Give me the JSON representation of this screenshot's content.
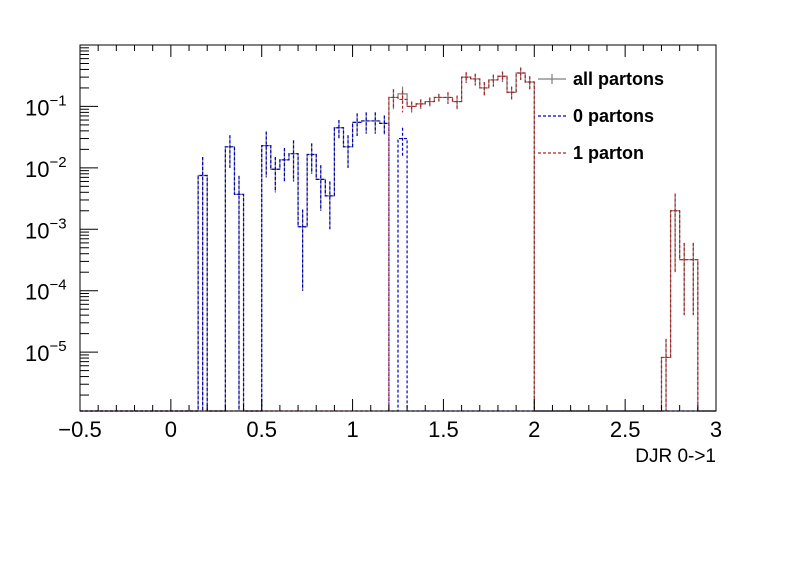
{
  "chart_data": {
    "type": "histogram",
    "title": "",
    "xlabel": "DJR 0->1",
    "ylabel": "",
    "xlim": [
      -0.5,
      3.0
    ],
    "ylim": [
      1.1e-06,
      1.0
    ],
    "y_scale": "log",
    "grid": false,
    "legend_position": "top-right",
    "x_ticks": [
      {
        "value": -0.5,
        "label": "−0.5"
      },
      {
        "value": 0.0,
        "label": "0"
      },
      {
        "value": 0.5,
        "label": "0.5"
      },
      {
        "value": 1.0,
        "label": "1"
      },
      {
        "value": 1.5,
        "label": "1.5"
      },
      {
        "value": 2.0,
        "label": "2"
      },
      {
        "value": 2.5,
        "label": "2.5"
      },
      {
        "value": 3.0,
        "label": "3"
      }
    ],
    "y_ticks": [
      {
        "value": 0.1,
        "base": "10",
        "exp": "−1"
      },
      {
        "value": 0.01,
        "base": "10",
        "exp": "−2"
      },
      {
        "value": 0.001,
        "base": "10",
        "exp": "−3"
      },
      {
        "value": 0.0001,
        "base": "10",
        "exp": "−4"
      },
      {
        "value": 1e-05,
        "base": "10",
        "exp": "−5"
      }
    ],
    "bin_width": 0.05,
    "series": [
      {
        "name": "all partons",
        "color": "#7f7f7f",
        "dash": "solid",
        "bins": [
          {
            "x0": 0.15,
            "y": 0.0075,
            "err": 0.0075
          },
          {
            "x0": 0.3,
            "y": 0.022,
            "err": 0.012
          },
          {
            "x0": 0.35,
            "y": 0.0037,
            "err": 0.0037
          },
          {
            "x0": 0.5,
            "y": 0.023,
            "err": 0.016
          },
          {
            "x0": 0.55,
            "y": 0.0095,
            "err": 0.0055
          },
          {
            "x0": 0.6,
            "y": 0.0135,
            "err": 0.0075
          },
          {
            "x0": 0.65,
            "y": 0.017,
            "err": 0.011
          },
          {
            "x0": 0.7,
            "y": 0.0011,
            "err": 0.001
          },
          {
            "x0": 0.75,
            "y": 0.0165,
            "err": 0.0085
          },
          {
            "x0": 0.8,
            "y": 0.0065,
            "err": 0.0045
          },
          {
            "x0": 0.85,
            "y": 0.0035,
            "err": 0.0025
          },
          {
            "x0": 0.9,
            "y": 0.045,
            "err": 0.015
          },
          {
            "x0": 0.95,
            "y": 0.022,
            "err": 0.012
          },
          {
            "x0": 1.0,
            "y": 0.055,
            "err": 0.022
          },
          {
            "x0": 1.05,
            "y": 0.058,
            "err": 0.022
          },
          {
            "x0": 1.1,
            "y": 0.058,
            "err": 0.022
          },
          {
            "x0": 1.15,
            "y": 0.053,
            "err": 0.018
          },
          {
            "x0": 1.2,
            "y": 0.14,
            "err": 0.05
          },
          {
            "x0": 1.25,
            "y": 0.16,
            "err": 0.05
          },
          {
            "x0": 1.3,
            "y": 0.1,
            "err": 0.02
          },
          {
            "x0": 1.35,
            "y": 0.11,
            "err": 0.02
          },
          {
            "x0": 1.4,
            "y": 0.12,
            "err": 0.02
          },
          {
            "x0": 1.45,
            "y": 0.14,
            "err": 0.02
          },
          {
            "x0": 1.5,
            "y": 0.14,
            "err": 0.03
          },
          {
            "x0": 1.55,
            "y": 0.12,
            "err": 0.03
          },
          {
            "x0": 1.6,
            "y": 0.3,
            "err": 0.06
          },
          {
            "x0": 1.65,
            "y": 0.28,
            "err": 0.06
          },
          {
            "x0": 1.7,
            "y": 0.2,
            "err": 0.05
          },
          {
            "x0": 1.75,
            "y": 0.27,
            "err": 0.06
          },
          {
            "x0": 1.8,
            "y": 0.31,
            "err": 0.06
          },
          {
            "x0": 1.85,
            "y": 0.17,
            "err": 0.04
          },
          {
            "x0": 1.9,
            "y": 0.35,
            "err": 0.08
          },
          {
            "x0": 1.95,
            "y": 0.25,
            "err": 0.06
          },
          {
            "x0": 2.7,
            "y": 8.2e-06,
            "err": 8.2e-06
          },
          {
            "x0": 2.75,
            "y": 0.002,
            "err": 0.0018
          },
          {
            "x0": 2.8,
            "y": 0.00032,
            "err": 0.00028
          },
          {
            "x0": 2.85,
            "y": 0.00032,
            "err": 0.00028
          }
        ]
      },
      {
        "name": "0 partons",
        "color": "#0000cc",
        "dash": "dashed",
        "bins": [
          {
            "x0": 0.15,
            "y": 0.0075,
            "err": 0.0075
          },
          {
            "x0": 0.3,
            "y": 0.022,
            "err": 0.012
          },
          {
            "x0": 0.35,
            "y": 0.0037,
            "err": 0.0037
          },
          {
            "x0": 0.5,
            "y": 0.023,
            "err": 0.016
          },
          {
            "x0": 0.55,
            "y": 0.0095,
            "err": 0.0055
          },
          {
            "x0": 0.6,
            "y": 0.0135,
            "err": 0.0075
          },
          {
            "x0": 0.65,
            "y": 0.017,
            "err": 0.011
          },
          {
            "x0": 0.7,
            "y": 0.0011,
            "err": 0.001
          },
          {
            "x0": 0.75,
            "y": 0.0165,
            "err": 0.0085
          },
          {
            "x0": 0.8,
            "y": 0.0065,
            "err": 0.0045
          },
          {
            "x0": 0.85,
            "y": 0.0035,
            "err": 0.0025
          },
          {
            "x0": 0.9,
            "y": 0.045,
            "err": 0.015
          },
          {
            "x0": 0.95,
            "y": 0.022,
            "err": 0.012
          },
          {
            "x0": 1.0,
            "y": 0.055,
            "err": 0.022
          },
          {
            "x0": 1.05,
            "y": 0.058,
            "err": 0.022
          },
          {
            "x0": 1.1,
            "y": 0.058,
            "err": 0.022
          },
          {
            "x0": 1.15,
            "y": 0.053,
            "err": 0.018
          },
          {
            "x0": 1.25,
            "y": 0.03,
            "err": 0.015
          }
        ]
      },
      {
        "name": "1 parton",
        "color": "#b22222",
        "dash": "dashed",
        "bins": [
          {
            "x0": 1.2,
            "y": 0.14,
            "err": 0.05
          },
          {
            "x0": 1.25,
            "y": 0.13,
            "err": 0.05
          },
          {
            "x0": 1.3,
            "y": 0.1,
            "err": 0.02
          },
          {
            "x0": 1.35,
            "y": 0.11,
            "err": 0.02
          },
          {
            "x0": 1.4,
            "y": 0.12,
            "err": 0.02
          },
          {
            "x0": 1.45,
            "y": 0.14,
            "err": 0.02
          },
          {
            "x0": 1.5,
            "y": 0.14,
            "err": 0.03
          },
          {
            "x0": 1.55,
            "y": 0.12,
            "err": 0.03
          },
          {
            "x0": 1.6,
            "y": 0.3,
            "err": 0.06
          },
          {
            "x0": 1.65,
            "y": 0.28,
            "err": 0.06
          },
          {
            "x0": 1.7,
            "y": 0.2,
            "err": 0.05
          },
          {
            "x0": 1.75,
            "y": 0.27,
            "err": 0.06
          },
          {
            "x0": 1.8,
            "y": 0.31,
            "err": 0.06
          },
          {
            "x0": 1.85,
            "y": 0.17,
            "err": 0.04
          },
          {
            "x0": 1.9,
            "y": 0.35,
            "err": 0.08
          },
          {
            "x0": 1.95,
            "y": 0.25,
            "err": 0.06
          },
          {
            "x0": 2.7,
            "y": 8.2e-06,
            "err": 8.2e-06
          },
          {
            "x0": 2.75,
            "y": 0.002,
            "err": 0.0018
          },
          {
            "x0": 2.8,
            "y": 0.00032,
            "err": 0.00028
          },
          {
            "x0": 2.85,
            "y": 0.00032,
            "err": 0.00028
          }
        ]
      }
    ]
  }
}
